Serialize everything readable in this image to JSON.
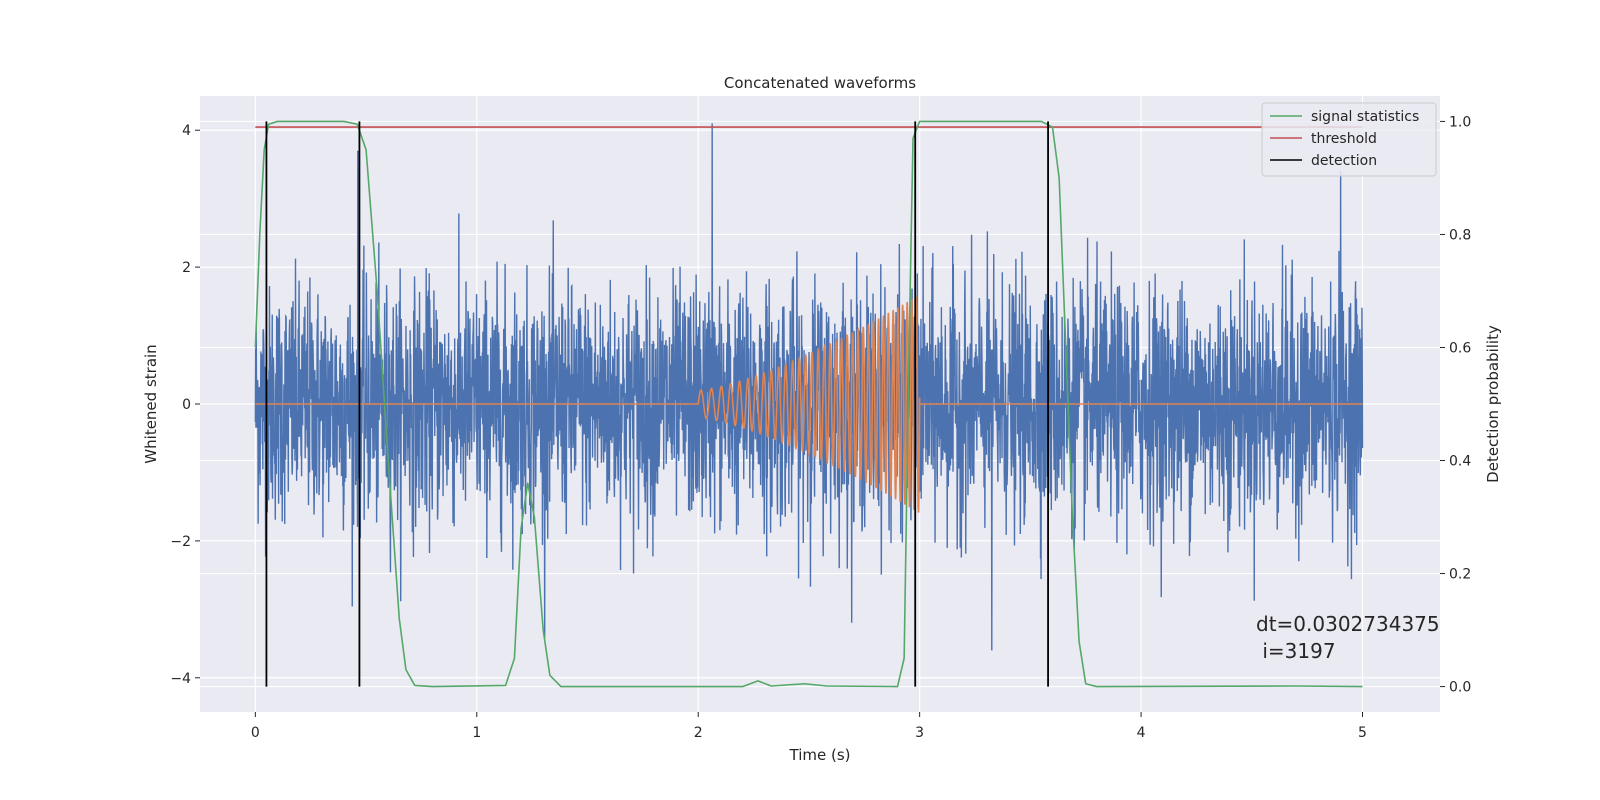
{
  "chart_data": {
    "type": "line",
    "title": "Concatenated waveforms",
    "xlabel": "Time (s)",
    "ylabel_left": "Whitened strain",
    "ylabel_right": "Detection probability",
    "xlim": [
      -0.25,
      5.35
    ],
    "ylim_left": [
      -4.5,
      4.5
    ],
    "ylim_right": [
      -0.045,
      1.045
    ],
    "x_ticks": [
      0,
      1,
      2,
      3,
      4,
      5
    ],
    "y_ticks_left": [
      -4,
      -2,
      0,
      2,
      4
    ],
    "y_ticks_left_labels": [
      "−4",
      "−2",
      "0",
      "2",
      "4"
    ],
    "y_ticks_right": [
      0.0,
      0.2,
      0.4,
      0.6,
      0.8,
      1.0
    ],
    "y_ticks_right_labels": [
      "0.0",
      "0.2",
      "0.4",
      "0.6",
      "0.8",
      "1.0"
    ],
    "grid": true,
    "legend_position": "top-right",
    "legend": [
      {
        "label": "signal statistics",
        "color": "#55a868"
      },
      {
        "label": "threshold",
        "color": "#c44e52"
      },
      {
        "label": "detection",
        "color": "#000000"
      }
    ],
    "series": [
      {
        "name": "",
        "axis": "left",
        "color": "#4c72b0",
        "description_kind": "noise",
        "x_range": [
          0,
          5
        ],
        "amplitude_std": 0.85,
        "peak_values": [
          4.1,
          -3.6,
          3.7,
          3.4
        ]
      },
      {
        "name": "",
        "axis": "left",
        "color": "#dd8452",
        "description_kind": "chirp",
        "x_range": [
          2.0,
          3.0
        ],
        "start_amplitude": 0.2,
        "end_amplitude": 1.6,
        "start_freq_hz": 20,
        "end_freq_hz": 50
      },
      {
        "name": "signal statistics",
        "axis": "right",
        "color": "#55a868",
        "points": [
          [
            0.0,
            0.6
          ],
          [
            0.02,
            0.8
          ],
          [
            0.04,
            0.95
          ],
          [
            0.06,
            0.995
          ],
          [
            0.1,
            1.0
          ],
          [
            0.4,
            1.0
          ],
          [
            0.46,
            0.995
          ],
          [
            0.5,
            0.95
          ],
          [
            0.55,
            0.7
          ],
          [
            0.6,
            0.4
          ],
          [
            0.65,
            0.12
          ],
          [
            0.68,
            0.03
          ],
          [
            0.72,
            0.002
          ],
          [
            0.8,
            0.0
          ],
          [
            1.13,
            0.002
          ],
          [
            1.17,
            0.05
          ],
          [
            1.2,
            0.28
          ],
          [
            1.23,
            0.36
          ],
          [
            1.26,
            0.3
          ],
          [
            1.3,
            0.1
          ],
          [
            1.33,
            0.02
          ],
          [
            1.38,
            0.0
          ],
          [
            2.2,
            0.0
          ],
          [
            2.27,
            0.01
          ],
          [
            2.33,
            0.001
          ],
          [
            2.48,
            0.005
          ],
          [
            2.58,
            0.001
          ],
          [
            2.9,
            0.0
          ],
          [
            2.93,
            0.05
          ],
          [
            2.95,
            0.55
          ],
          [
            2.97,
            0.97
          ],
          [
            3.0,
            1.0
          ],
          [
            3.55,
            1.0
          ],
          [
            3.6,
            0.99
          ],
          [
            3.63,
            0.9
          ],
          [
            3.66,
            0.6
          ],
          [
            3.69,
            0.3
          ],
          [
            3.72,
            0.08
          ],
          [
            3.75,
            0.005
          ],
          [
            3.8,
            0.0
          ],
          [
            4.7,
            0.001
          ],
          [
            5.0,
            0.0
          ]
        ]
      },
      {
        "name": "threshold",
        "axis": "right",
        "color": "#c44e52",
        "x": [
          0,
          5
        ],
        "y": [
          0.99,
          0.99
        ]
      },
      {
        "name": "detection",
        "axis": "right",
        "color": "#000000",
        "type": "vlines",
        "x": [
          0.05,
          0.47,
          2.98,
          3.58
        ],
        "y_range": [
          0,
          1
        ]
      }
    ],
    "annotation": {
      "line1": "dt=0.0302734375",
      "line2": " i=3197"
    }
  }
}
